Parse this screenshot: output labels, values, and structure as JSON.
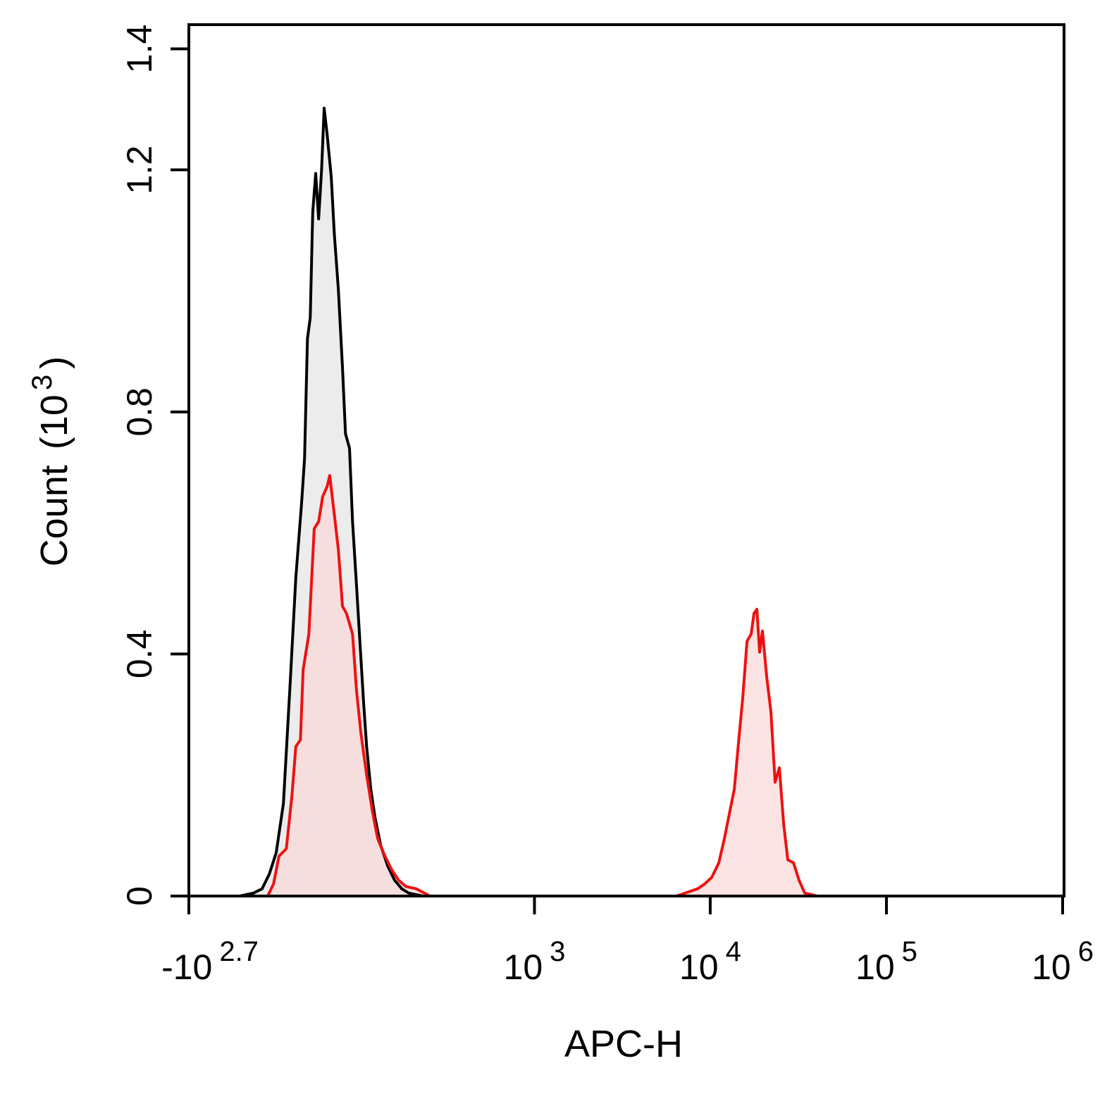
{
  "chart_data": {
    "type": "histogram-overlay",
    "xlabel": "APC-H",
    "ylabel": "Count",
    "ylabel_unit_base": "(10",
    "ylabel_unit_exp": "3",
    "ylabel_unit_close": ")",
    "xscale": "biexponential",
    "xlim": [
      -501,
      1000000
    ],
    "xticks": [
      {
        "value": -501,
        "label": "-10",
        "exponent": "2.7"
      },
      {
        "value": 1000,
        "label": "10",
        "exponent": "3"
      },
      {
        "value": 10000,
        "label": "10",
        "exponent": "4"
      },
      {
        "value": 100000,
        "label": "10",
        "exponent": "5"
      },
      {
        "value": 1000000,
        "label": "10",
        "exponent": "6"
      }
    ],
    "ylim": [
      0,
      1.44
    ],
    "yticks": [
      0,
      0.4,
      0.8,
      1.2,
      1.4
    ],
    "series": [
      {
        "color": "#000000",
        "fill": "#e6e6e6",
        "x": [
          -242,
          -194,
          -168,
          -147,
          -129,
          -111,
          -95,
          -82,
          -69,
          -63,
          -57,
          -51,
          -46,
          -40,
          -34,
          -28,
          -23,
          -17,
          -9,
          -3,
          5,
          13,
          19,
          27,
          33,
          41,
          47,
          56,
          62,
          71,
          80,
          93,
          110,
          127,
          146,
          165,
          210
        ],
        "values": [
          0,
          0.005,
          0.012,
          0.037,
          0.072,
          0.153,
          0.35,
          0.526,
          0.653,
          0.723,
          0.921,
          0.956,
          1.13,
          1.194,
          1.119,
          1.201,
          1.302,
          1.258,
          1.188,
          1.095,
          1.002,
          0.874,
          0.764,
          0.74,
          0.619,
          0.514,
          0.433,
          0.316,
          0.247,
          0.177,
          0.13,
          0.084,
          0.049,
          0.026,
          0.012,
          0.005,
          0
        ]
      },
      {
        "color": "#ee1111",
        "fill": "#fbd9d9",
        "x": [
          -152,
          -136,
          -122,
          -104,
          -91,
          -82,
          -72,
          -66,
          -54,
          -43,
          -34,
          -26,
          -17,
          -12,
          -3,
          5,
          13,
          21,
          33,
          41,
          50,
          62,
          74,
          86,
          103,
          120,
          138,
          157,
          188,
          235,
          6435,
          8480,
          9300,
          10200,
          11190,
          12030,
          12960,
          13700,
          14470,
          15300,
          16170,
          17070,
          17720,
          18390,
          19060,
          19780,
          20910,
          22090,
          23340,
          24670,
          26090,
          27570,
          29680,
          31930,
          34390,
          40590
        ],
        "values": [
          0,
          0.02,
          0.066,
          0.078,
          0.165,
          0.247,
          0.258,
          0.374,
          0.433,
          0.607,
          0.619,
          0.66,
          0.677,
          0.695,
          0.631,
          0.572,
          0.479,
          0.467,
          0.433,
          0.34,
          0.27,
          0.2,
          0.142,
          0.095,
          0.066,
          0.043,
          0.026,
          0.016,
          0.012,
          0,
          0,
          0.012,
          0.02,
          0.031,
          0.055,
          0.095,
          0.142,
          0.177,
          0.253,
          0.328,
          0.421,
          0.433,
          0.467,
          0.474,
          0.403,
          0.438,
          0.363,
          0.305,
          0.188,
          0.212,
          0.119,
          0.06,
          0.055,
          0.026,
          0.005,
          0
        ]
      }
    ]
  }
}
